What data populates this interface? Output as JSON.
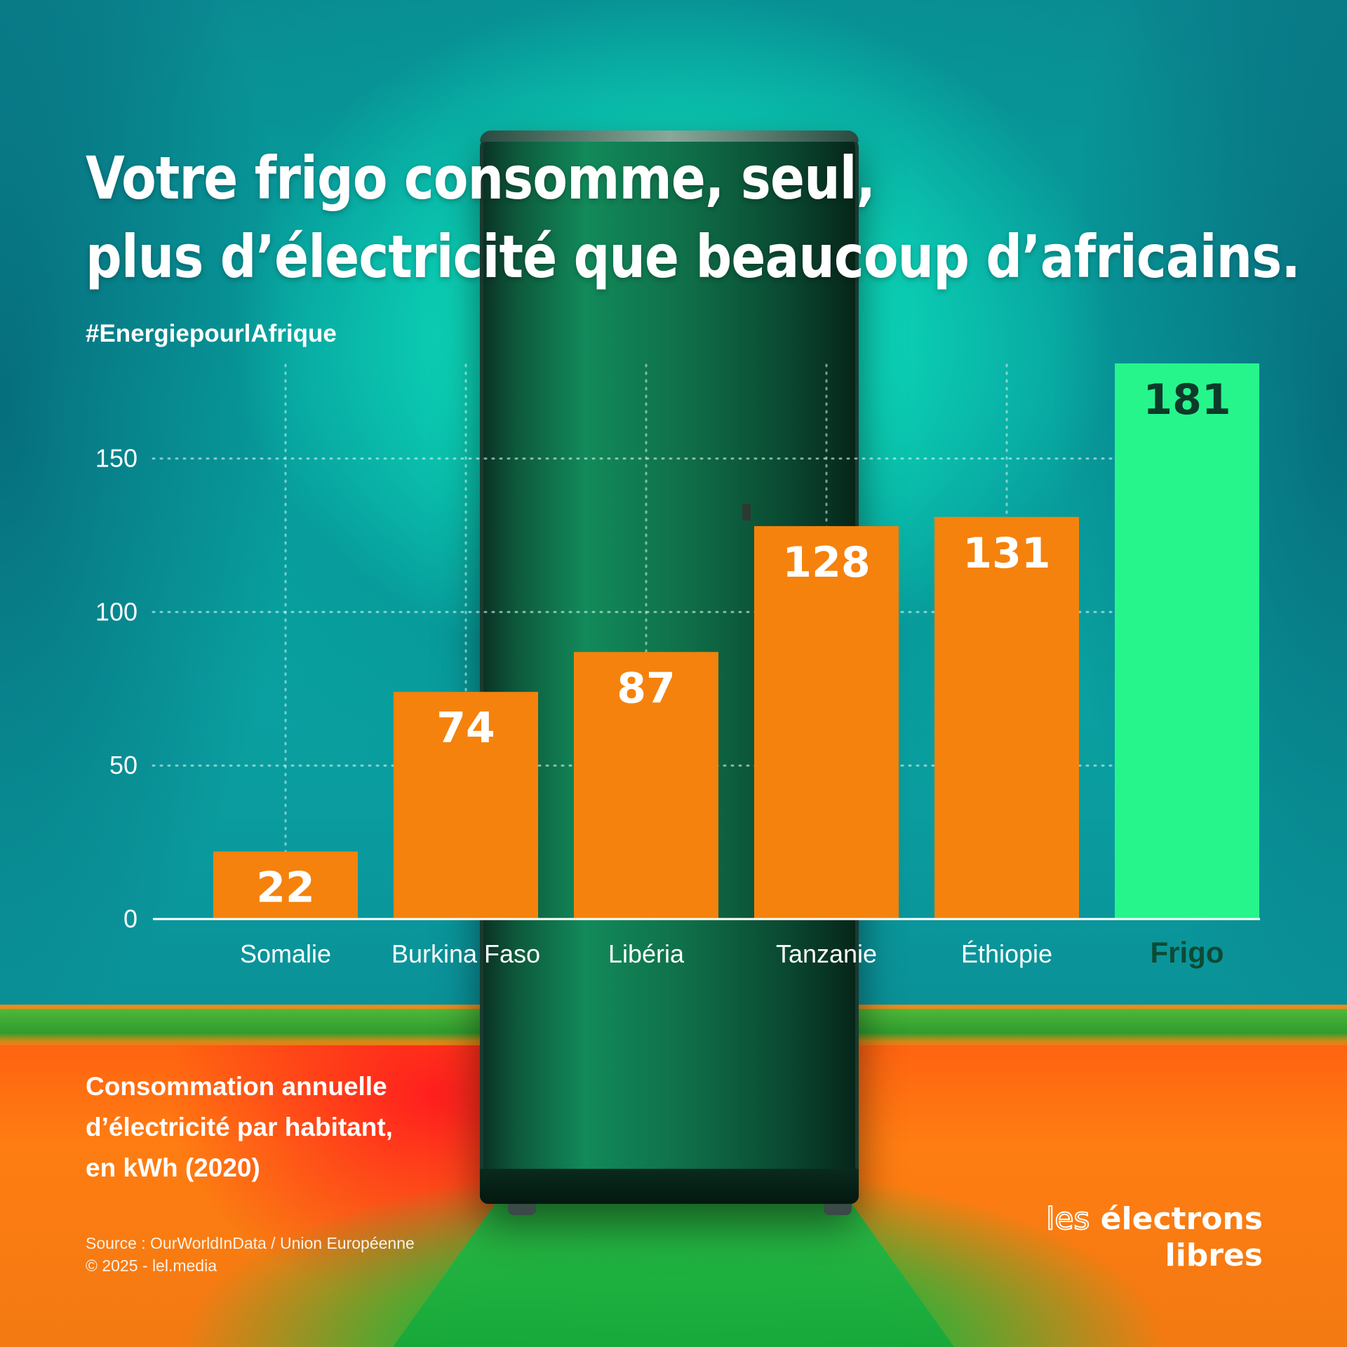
{
  "title_lines": [
    "Votre frigo consomme, seul,",
    "plus d’électricité que beaucoup d’africains."
  ],
  "hashtag": "#EnergiepourlAfrique",
  "caption_lines": [
    "Consommation annuelle",
    "d’électricité par habitant,",
    "en kWh (2020)"
  ],
  "source_lines": [
    "Source : OurWorldInData / Union Européenne",
    "© 2025 - lel.media"
  ],
  "logo": {
    "line1_a": "les",
    "line1_b": "électrons",
    "line2": "libres"
  },
  "colors": {
    "bar": "#f5820c",
    "highlight_bar": "#26f58c",
    "grid": "#d9f5f0",
    "axis": "#ffffff"
  },
  "chart_data": {
    "type": "bar",
    "title": "Votre frigo consomme, seul, plus d’électricité que beaucoup d’africains.",
    "categories": [
      "Somalie",
      "Burkina Faso",
      "Libéria",
      "Tanzanie",
      "Éthiopie",
      "Frigo"
    ],
    "values": [
      22,
      74,
      87,
      128,
      131,
      181
    ],
    "highlight": "Frigo",
    "yticks": [
      0,
      50,
      100,
      150
    ],
    "ylim": [
      0,
      181
    ],
    "grid": true,
    "grid_style": "dotted",
    "ylabel": "",
    "xlabel": ""
  }
}
